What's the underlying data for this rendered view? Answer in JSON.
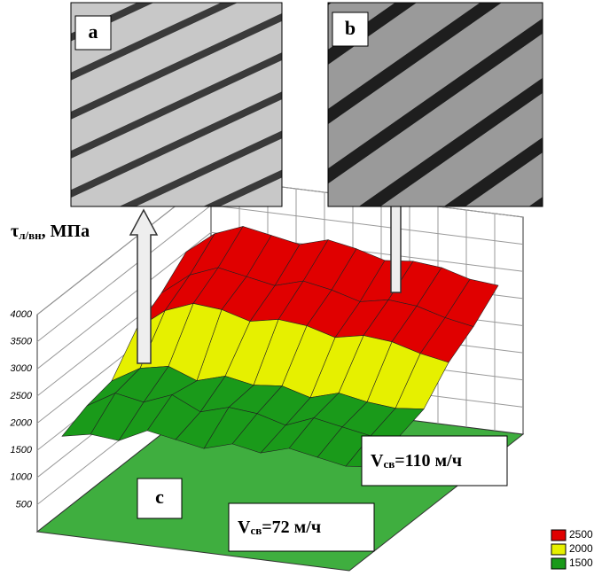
{
  "chart_data": {
    "type": "surface3d",
    "panel_labels": [
      "a",
      "b",
      "c"
    ],
    "zlabel": {
      "symbol": "τ",
      "sub": "л/вн",
      "rest": ", МПа"
    },
    "annotations": [
      {
        "text": "V",
        "sub": "св",
        "rest": "=110 м/ч"
      },
      {
        "text": "V",
        "sub": "св",
        "rest": "=72 м/ч"
      }
    ],
    "zlim": [
      0,
      4000
    ],
    "zticks": [
      500,
      1000,
      1500,
      2000,
      2500,
      3000,
      3500,
      4000
    ],
    "grid": true,
    "legend": [
      {
        "value": 2500,
        "color": "#e00000"
      },
      {
        "value": 2000,
        "color": "#e6f000"
      },
      {
        "value": 1500,
        "color": "#1a9a1a"
      }
    ],
    "surface": [
      [
        1400,
        1500,
        1450,
        1700,
        1600,
        1500,
        1650,
        1550,
        1700,
        1600,
        1500,
        1550
      ],
      [
        1600,
        1900,
        1800,
        2000,
        1750,
        1900,
        1850,
        1700,
        1900,
        1800,
        1700,
        1750
      ],
      [
        1700,
        2000,
        2100,
        1900,
        2050,
        1950,
        2000,
        1850,
        2000,
        1900,
        1850,
        1900
      ],
      [
        2300,
        2700,
        2900,
        2850,
        2700,
        2800,
        2750,
        2600,
        2700,
        2650,
        2500,
        2400
      ],
      [
        2600,
        3000,
        3200,
        3100,
        3000,
        3150,
        3050,
        2900,
        3000,
        2950,
        2800,
        2700
      ],
      [
        3000,
        3400,
        3600,
        3500,
        3400,
        3550,
        3450,
        3300,
        3350,
        3300,
        3150,
        3100
      ]
    ]
  }
}
